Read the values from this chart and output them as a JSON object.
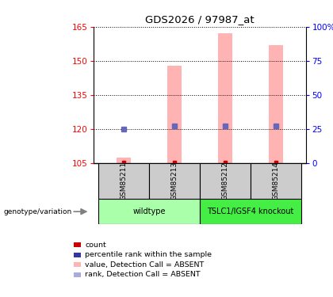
{
  "title": "GDS2026 / 97987_at",
  "samples": [
    "GSM85211",
    "GSM85213",
    "GSM85212",
    "GSM85214"
  ],
  "ylim_left": [
    105,
    165
  ],
  "ylim_right": [
    0,
    100
  ],
  "yticks_left": [
    105,
    120,
    135,
    150,
    165
  ],
  "yticks_right": [
    0,
    25,
    50,
    75,
    100
  ],
  "pink_bar_values": [
    107.5,
    148.0,
    162.0,
    157.0
  ],
  "blue_dot_values": [
    120.0,
    121.5,
    121.5,
    121.5
  ],
  "red_dot_values": [
    105.3,
    105.3,
    105.3,
    105.3
  ],
  "pink_bar_color": "#FFB3B3",
  "blue_dot_color": "#6666BB",
  "red_dot_color": "#CC0000",
  "bar_base": 105,
  "groups": [
    {
      "label": "wildtype",
      "samples": [
        0,
        1
      ],
      "color": "#AAFFAA"
    },
    {
      "label": "TSLC1/IGSF4 knockout",
      "samples": [
        2,
        3
      ],
      "color": "#44EE44"
    }
  ],
  "sample_box_color": "#CCCCCC",
  "legend_items": [
    {
      "color": "#CC0000",
      "label": "count"
    },
    {
      "color": "#3333AA",
      "label": "percentile rank within the sample"
    },
    {
      "color": "#FFB3B3",
      "label": "value, Detection Call = ABSENT"
    },
    {
      "color": "#AAAADD",
      "label": "rank, Detection Call = ABSENT"
    }
  ],
  "genotype_label": "genotype/variation"
}
